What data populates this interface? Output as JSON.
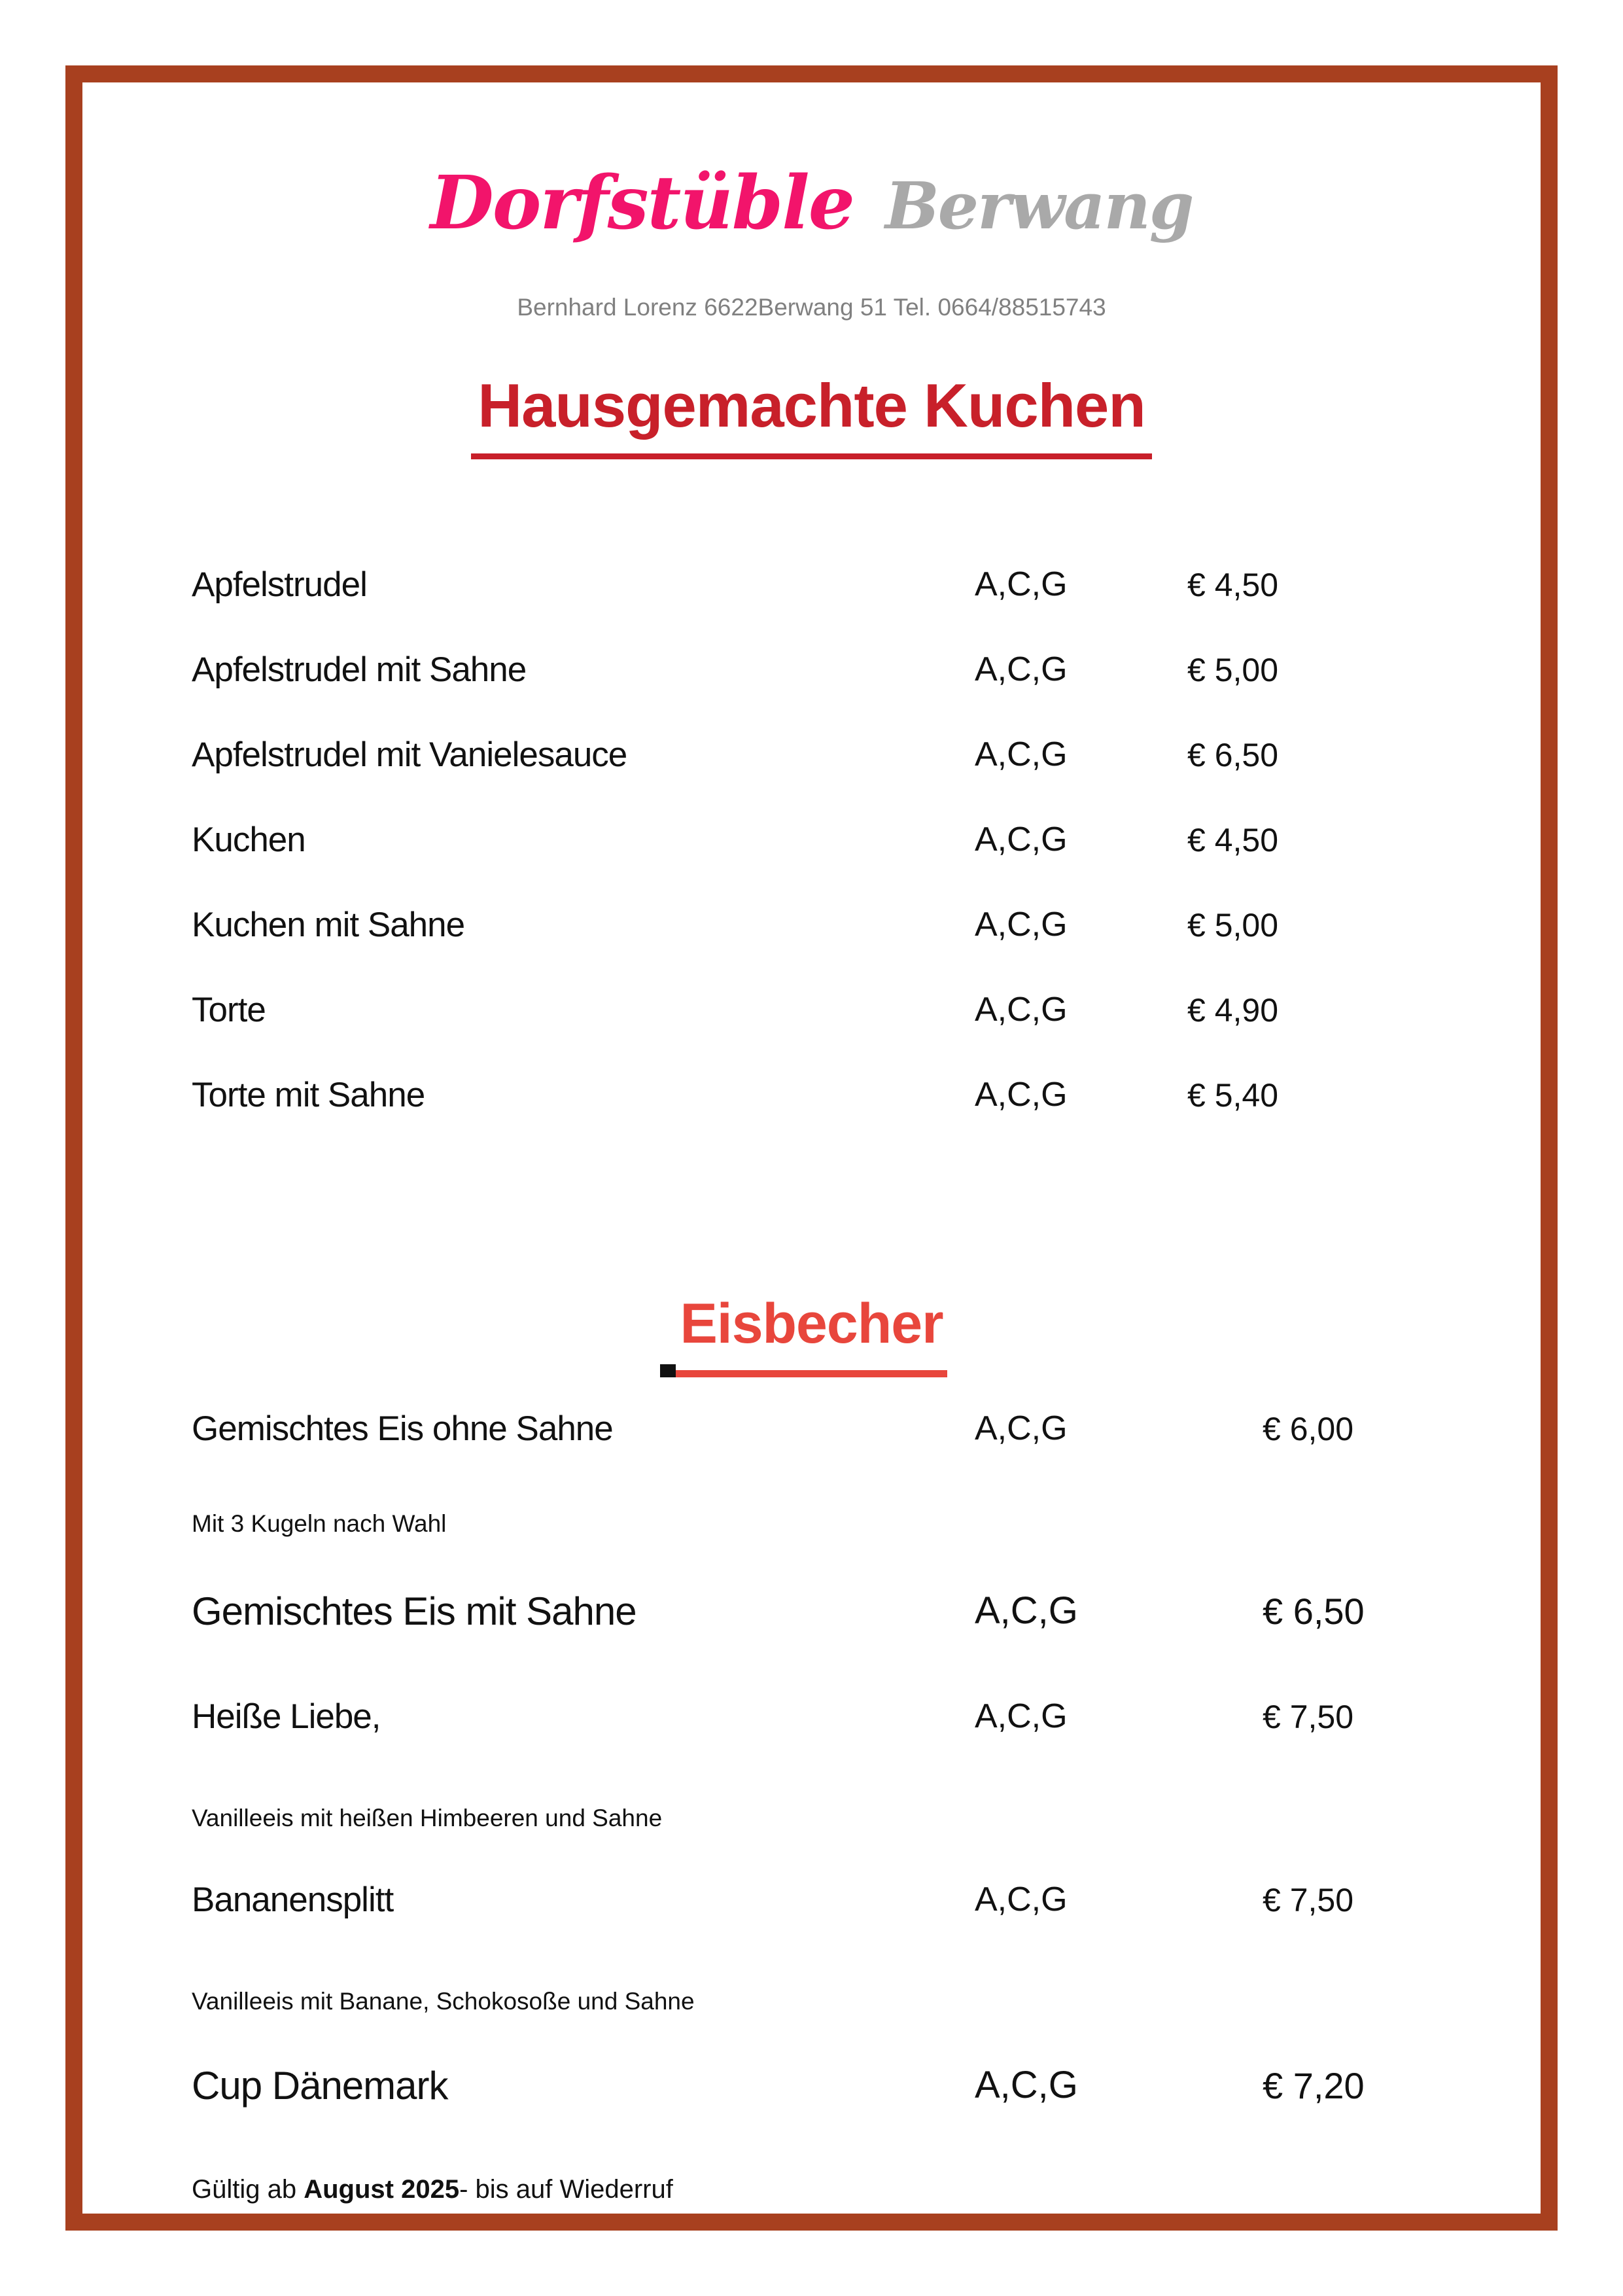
{
  "header": {
    "logo_primary": "Dorfstüble",
    "logo_secondary": "Berwang",
    "address": "Bernhard Lorenz 6622Berwang 51 Tel. 0664/88515743"
  },
  "colors": {
    "frame_border": "#A8401F",
    "logo_primary": "#F2146B",
    "logo_secondary": "#A9A9A9",
    "heading_kuchen": "#C8202A",
    "heading_eisbecher": "#E8463C",
    "body_text": "#111111",
    "address_gray": "#808080"
  },
  "sections": [
    {
      "title": "Hausgemachte Kuchen",
      "items": [
        {
          "name": "Apfelstrudel",
          "allergens": "A,C,G",
          "price": "€ 4,50"
        },
        {
          "name": "Apfelstrudel mit Sahne",
          "allergens": "A,C,G",
          "price": "€ 5,00"
        },
        {
          "name": "Apfelstrudel mit Vanielesauce",
          "allergens": "A,C,G",
          "price": "€ 6,50"
        },
        {
          "name": "Kuchen",
          "allergens": "A,C,G",
          "price": "€ 4,50"
        },
        {
          "name": "Kuchen mit Sahne",
          "allergens": "A,C,G",
          "price": "€ 5,00"
        },
        {
          "name": "Torte",
          "allergens": "A,C,G",
          "price": "€ 4,90"
        },
        {
          "name": "Torte mit Sahne",
          "allergens": "A,C,G",
          "price": "€ 5,40"
        }
      ]
    },
    {
      "title": "Eisbecher",
      "items": [
        {
          "name": "Gemischtes Eis ohne Sahne",
          "allergens": "A,C,G",
          "price": "€ 6,00",
          "description": "Mit 3 Kugeln nach Wahl"
        },
        {
          "name": "Gemischtes Eis mit Sahne",
          "allergens": "A,C,G",
          "price": "€ 6,50"
        },
        {
          "name": "Heiße Liebe,",
          "allergens": "A,C,G",
          "price": "€ 7,50",
          "description": "Vanilleeis mit heißen Himbeeren und Sahne"
        },
        {
          "name": "Bananensplitt",
          "allergens": "A,C,G",
          "price": "€ 7,50",
          "description": "Vanilleeis mit Banane, Schokosoße und Sahne"
        },
        {
          "name": "Cup Dänemark",
          "allergens": "A,C,G",
          "price": "€ 7,20"
        }
      ]
    }
  ],
  "footer": {
    "prefix": "Gültig ab ",
    "bold": "August 2025",
    "suffix": "- bis auf Wiederruf"
  }
}
